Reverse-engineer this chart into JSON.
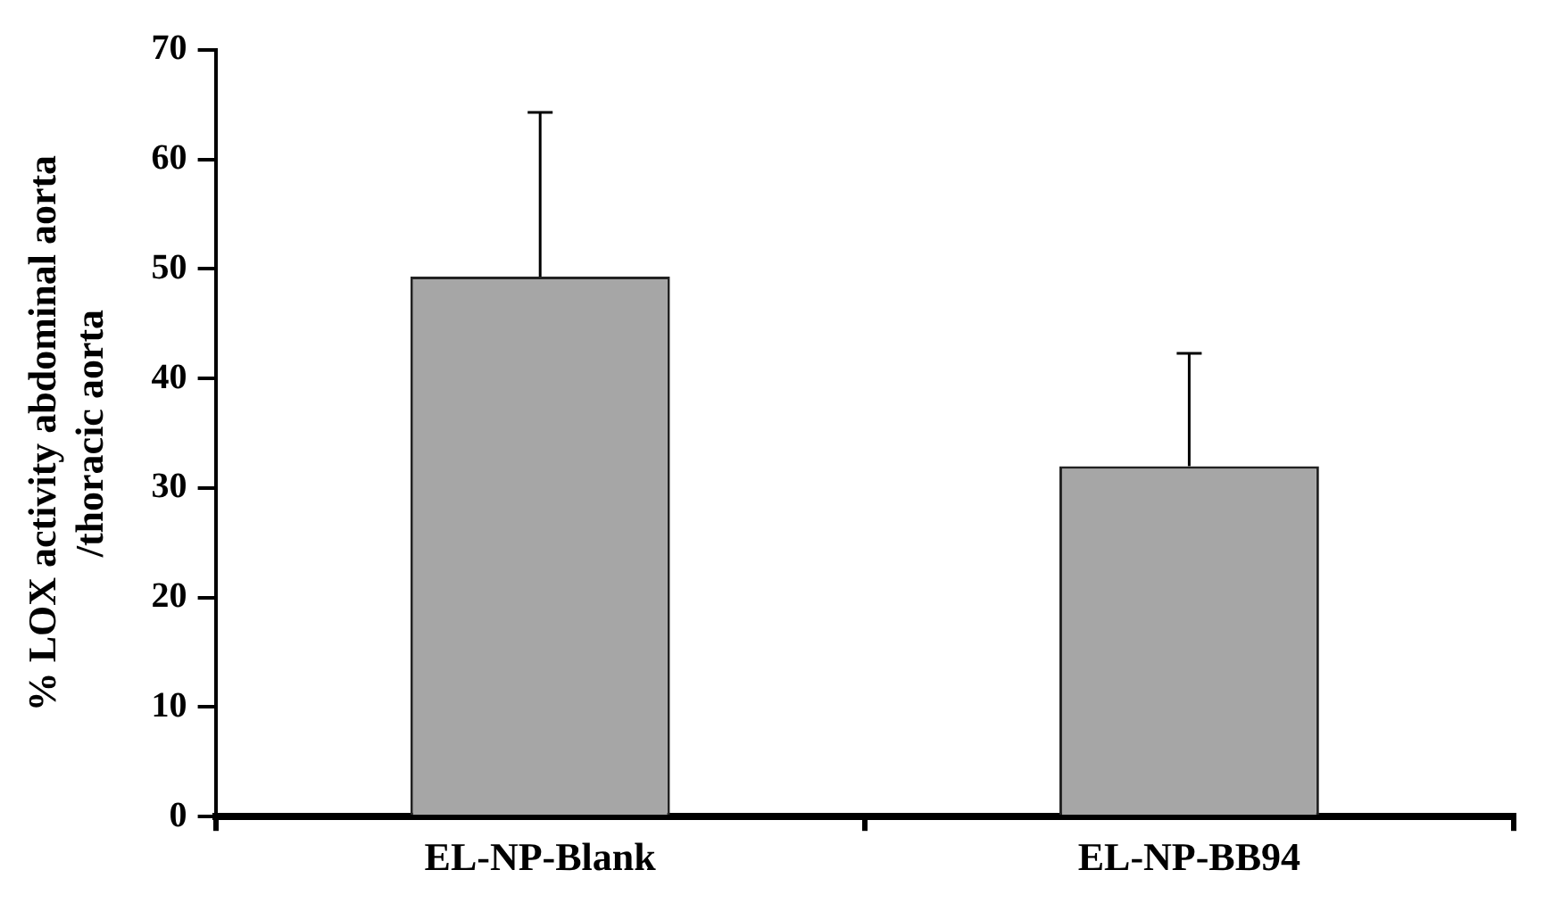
{
  "chart_data": {
    "type": "bar",
    "ylabel": "% LOX activity abdominal aorta /thoracic aorta",
    "categories": [
      "EL-NP-Blank",
      "EL-NP-BB94"
    ],
    "values": [
      49.3,
      32.0
    ],
    "errors": [
      [
        49.3,
        64.3
      ],
      [
        32.0,
        42.3
      ]
    ],
    "color": "#a6a6a6",
    "ylim": [
      0,
      70
    ],
    "yticks": [
      0,
      10,
      20,
      30,
      40,
      50,
      60,
      70
    ],
    "grid": false,
    "legend": false
  }
}
